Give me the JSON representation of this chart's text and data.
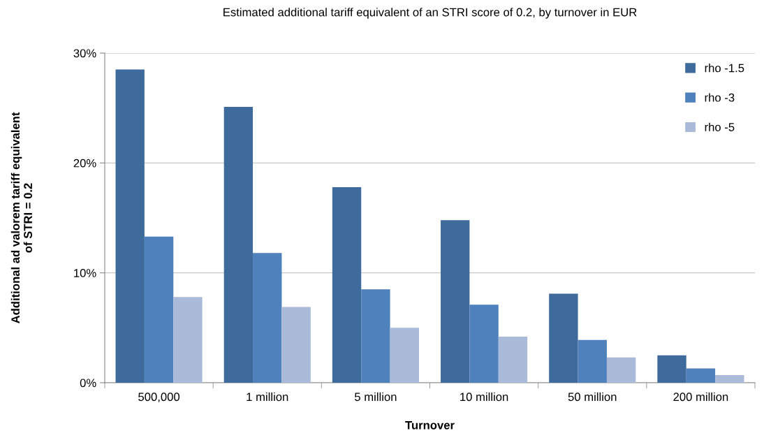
{
  "chart_data": {
    "type": "bar",
    "title": "Estimated additional tariff equivalent of an STRI score of 0.2, by turnover in EUR",
    "xlabel": "Turnover",
    "ylabel": "Additional ad valorem tariff equivalent\nof STRI = 0.2",
    "categories": [
      "500,000",
      "1 million",
      "5 million",
      "10 million",
      "50 million",
      "200 million"
    ],
    "series": [
      {
        "name": "rho -1.5",
        "color": "#3f6b9c",
        "values": [
          28.5,
          25.1,
          17.8,
          14.8,
          8.1,
          2.5
        ]
      },
      {
        "name": "rho -3",
        "color": "#4f81bd",
        "values": [
          13.3,
          11.8,
          8.5,
          7.1,
          3.9,
          1.3
        ]
      },
      {
        "name": "rho -5",
        "color": "#a9bbd9",
        "values": [
          7.8,
          6.9,
          5.0,
          4.2,
          2.3,
          0.7
        ]
      }
    ],
    "ylim": [
      0,
      30
    ],
    "yticks": [
      {
        "value": 0,
        "label": "0%"
      },
      {
        "value": 10,
        "label": "10%"
      },
      {
        "value": 20,
        "label": "20%"
      },
      {
        "value": 30,
        "label": "30%"
      }
    ],
    "grid": "y",
    "legend": "top right"
  }
}
